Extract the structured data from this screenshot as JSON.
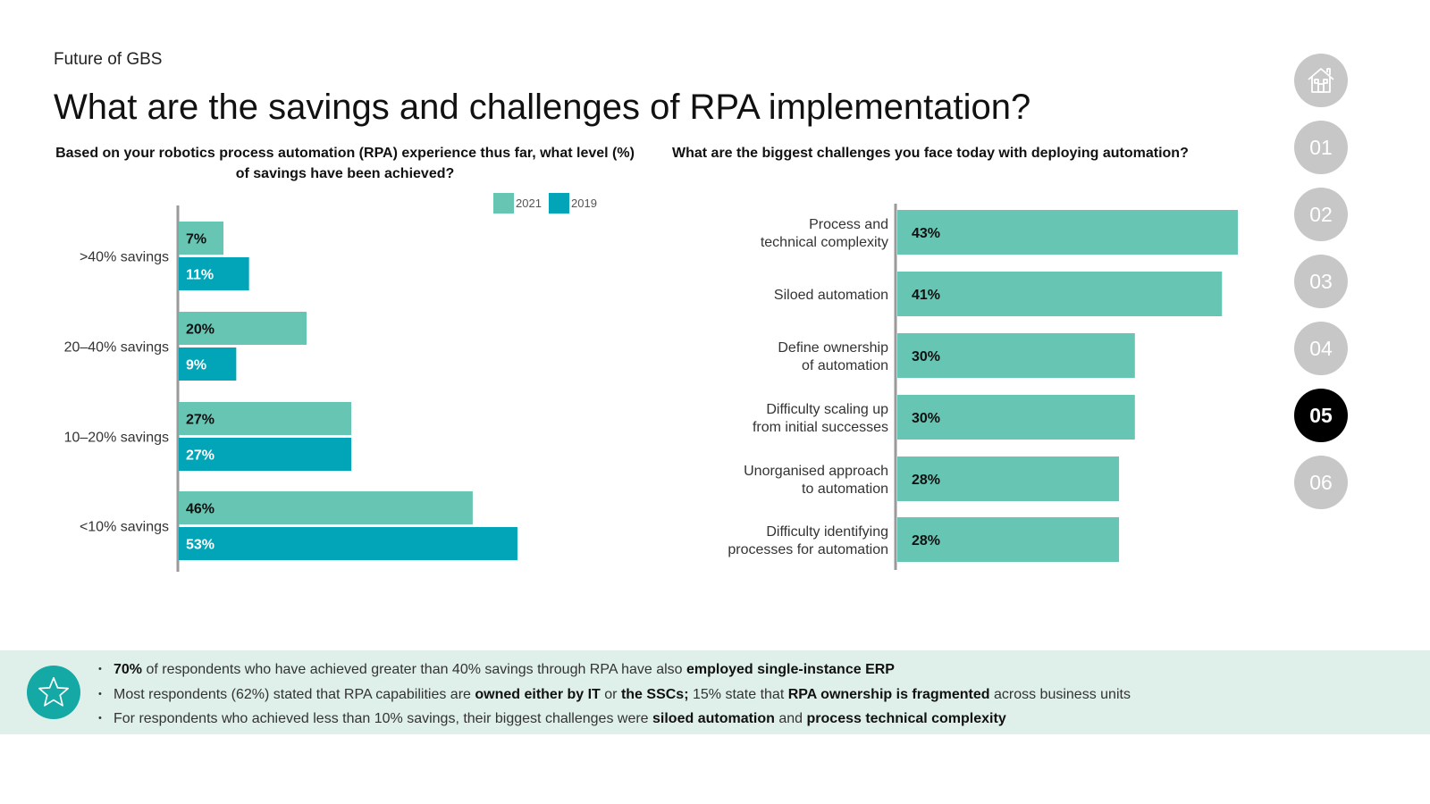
{
  "header": {
    "section": "Future of GBS",
    "title": "What are the savings and challenges of RPA implementation?"
  },
  "nav": {
    "items": [
      "01",
      "02",
      "03",
      "04",
      "05",
      "06"
    ],
    "active": "05",
    "home_icon": "home-icon"
  },
  "colors": {
    "series_2021": "#66c5b3",
    "series_2019": "#02a5b8",
    "axis": "#9a9a9a",
    "nav_inactive": "#c7c7c7",
    "nav_active": "#000000",
    "band": "#dff0eb",
    "star_circle": "#14a9a4"
  },
  "chart_data": [
    {
      "type": "bar",
      "orientation": "horizontal",
      "title": "Based on your robotics process automation (RPA) experience thus far, what level (%) of savings have been achieved?",
      "categories": [
        ">40% savings",
        "20–40% savings",
        "10–20% savings",
        "<10% savings"
      ],
      "series": [
        {
          "name": "2021",
          "values": [
            7,
            20,
            27,
            46
          ],
          "labels": [
            "7%",
            "20%",
            "27%",
            "46%"
          ]
        },
        {
          "name": "2019",
          "values": [
            11,
            9,
            27,
            53
          ],
          "labels": [
            "11%",
            "9%",
            "27%",
            "53%"
          ]
        }
      ],
      "legend": "top-right",
      "xlim": [
        0,
        100
      ],
      "grid": false
    },
    {
      "type": "bar",
      "orientation": "horizontal",
      "title": "What are the biggest challenges you face today with deploying automation?",
      "categories": [
        [
          "Process and",
          "technical complexity"
        ],
        [
          "Siloed automation"
        ],
        [
          "Define ownership",
          "of automation"
        ],
        [
          "Difficulty scaling up",
          "from initial successes"
        ],
        [
          "Unorganised approach",
          "to automation"
        ],
        [
          "Difficulty identifying",
          "processes for automation"
        ]
      ],
      "values": [
        43,
        41,
        30,
        30,
        28,
        28
      ],
      "labels": [
        "43%",
        "41%",
        "30%",
        "30%",
        "28%",
        "28%"
      ],
      "xlim": [
        0,
        45
      ],
      "grid": false
    }
  ],
  "takeaways": [
    [
      {
        "t": "70%",
        "b": true
      },
      {
        "t": " of respondents who have achieved greater than 40% savings through RPA have also ",
        "b": false
      },
      {
        "t": "employed single-instance ERP",
        "b": true
      }
    ],
    [
      {
        "t": "Most respondents (62%) stated that RPA capabilities are ",
        "b": false
      },
      {
        "t": "owned either by IT",
        "b": true
      },
      {
        "t": " or ",
        "b": false
      },
      {
        "t": "the SSCs;",
        "b": true
      },
      {
        "t": " 15% state that ",
        "b": false
      },
      {
        "t": "RPA ownership is fragmented",
        "b": true
      },
      {
        "t": " across business units",
        "b": false
      }
    ],
    [
      {
        "t": "For respondents who achieved less than 10% savings, their biggest challenges were ",
        "b": false
      },
      {
        "t": "siloed automation",
        "b": true
      },
      {
        "t": " and ",
        "b": false
      },
      {
        "t": "process technical complexity",
        "b": true
      }
    ]
  ],
  "takeaway_icon": "star-icon"
}
